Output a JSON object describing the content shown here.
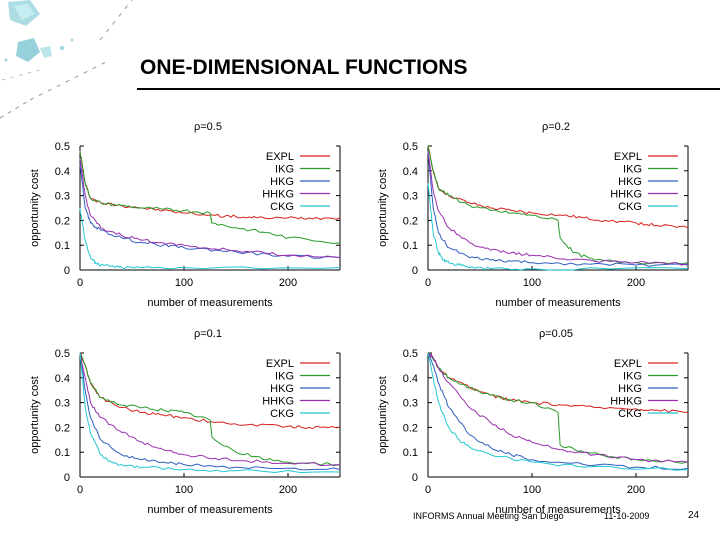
{
  "slide": {
    "title": "ONE-DIMENSIONAL FUNCTIONS",
    "footer_left": "INFORMS Annual Meeting San Diego",
    "footer_date": "11-10-2009",
    "page_number": "24"
  },
  "colors": {
    "EXPL": "#d62020",
    "IKG": "#2a9a2a",
    "HKG": "#2f5fc0",
    "HHKG": "#9a2fb0",
    "CKG": "#22c8d0"
  },
  "chart_data": [
    {
      "type": "line",
      "title": "ρ=0.5",
      "xlabel": "number of measurements",
      "ylabel": "opportunity cost",
      "xlim": [
        0,
        250
      ],
      "ylim": [
        0,
        0.5
      ],
      "xticks": [
        "0",
        "100",
        "200"
      ],
      "yticks": [
        "0",
        "0.1",
        "0.2",
        "0.3",
        "0.4",
        "0.5"
      ],
      "legend_position": "top-right",
      "series": [
        {
          "name": "EXPL",
          "x": [
            0,
            5,
            10,
            20,
            40,
            60,
            80,
            100,
            130,
            150,
            170,
            200,
            220,
            250
          ],
          "y": [
            0.48,
            0.35,
            0.29,
            0.27,
            0.26,
            0.25,
            0.24,
            0.23,
            0.22,
            0.215,
            0.21,
            0.21,
            0.21,
            0.21
          ]
        },
        {
          "name": "IKG",
          "x": [
            0,
            5,
            10,
            20,
            40,
            60,
            80,
            100,
            125,
            127,
            150,
            180,
            200,
            250
          ],
          "y": [
            0.48,
            0.35,
            0.29,
            0.27,
            0.26,
            0.25,
            0.245,
            0.24,
            0.23,
            0.19,
            0.17,
            0.15,
            0.13,
            0.11
          ]
        },
        {
          "name": "HKG",
          "x": [
            0,
            5,
            10,
            20,
            40,
            60,
            80,
            100,
            130,
            160,
            200,
            250
          ],
          "y": [
            0.43,
            0.25,
            0.19,
            0.16,
            0.13,
            0.11,
            0.1,
            0.09,
            0.08,
            0.07,
            0.055,
            0.05
          ]
        },
        {
          "name": "HHKG",
          "x": [
            0,
            5,
            10,
            20,
            40,
            60,
            80,
            100,
            130,
            160,
            200,
            250
          ],
          "y": [
            0.45,
            0.3,
            0.22,
            0.17,
            0.14,
            0.12,
            0.11,
            0.1,
            0.085,
            0.075,
            0.06,
            0.05
          ]
        },
        {
          "name": "CKG",
          "x": [
            0,
            5,
            10,
            15,
            20,
            30,
            40,
            60,
            100,
            250
          ],
          "y": [
            0.25,
            0.12,
            0.05,
            0.03,
            0.02,
            0.015,
            0.01,
            0.01,
            0.01,
            0.01
          ]
        }
      ]
    },
    {
      "type": "line",
      "title": "ρ=0.2",
      "xlabel": "number of measurements",
      "ylabel": "opportunity cost",
      "xlim": [
        0,
        250
      ],
      "ylim": [
        0,
        0.5
      ],
      "xticks": [
        "0",
        "100",
        "200"
      ],
      "yticks": [
        "0",
        "0.1",
        "0.2",
        "0.3",
        "0.4",
        "0.5"
      ],
      "legend_position": "top-right",
      "series": [
        {
          "name": "EXPL",
          "x": [
            0,
            5,
            10,
            20,
            40,
            60,
            80,
            100,
            130,
            150,
            170,
            200,
            220,
            250
          ],
          "y": [
            0.5,
            0.4,
            0.33,
            0.3,
            0.27,
            0.25,
            0.24,
            0.23,
            0.22,
            0.21,
            0.2,
            0.19,
            0.18,
            0.17
          ]
        },
        {
          "name": "IKG",
          "x": [
            0,
            5,
            10,
            20,
            40,
            60,
            80,
            100,
            125,
            127,
            140,
            160,
            200,
            250
          ],
          "y": [
            0.5,
            0.4,
            0.33,
            0.3,
            0.26,
            0.24,
            0.23,
            0.22,
            0.2,
            0.13,
            0.07,
            0.04,
            0.03,
            0.03
          ]
        },
        {
          "name": "HKG",
          "x": [
            0,
            5,
            10,
            20,
            40,
            60,
            80,
            100,
            150,
            200,
            250
          ],
          "y": [
            0.48,
            0.25,
            0.15,
            0.09,
            0.05,
            0.04,
            0.035,
            0.03,
            0.025,
            0.02,
            0.02
          ]
        },
        {
          "name": "HHKG",
          "x": [
            0,
            5,
            10,
            20,
            40,
            60,
            80,
            100,
            130,
            160,
            200,
            250
          ],
          "y": [
            0.48,
            0.32,
            0.24,
            0.17,
            0.11,
            0.08,
            0.07,
            0.06,
            0.045,
            0.035,
            0.03,
            0.025
          ]
        },
        {
          "name": "CKG",
          "x": [
            0,
            5,
            10,
            15,
            20,
            30,
            40,
            60,
            100,
            250
          ],
          "y": [
            0.35,
            0.15,
            0.07,
            0.04,
            0.03,
            0.02,
            0.01,
            0.005,
            0.005,
            0.005
          ]
        }
      ]
    },
    {
      "type": "line",
      "title": "ρ=0.1",
      "xlabel": "number of measurements",
      "ylabel": "opportunity cost",
      "xlim": [
        0,
        250
      ],
      "ylim": [
        0,
        0.5
      ],
      "xticks": [
        "0",
        "100",
        "200"
      ],
      "yticks": [
        "0",
        "0.1",
        "0.2",
        "0.3",
        "0.4",
        "0.5"
      ],
      "legend_position": "top-right",
      "series": [
        {
          "name": "EXPL",
          "x": [
            0,
            5,
            10,
            20,
            40,
            60,
            80,
            100,
            130,
            160,
            200,
            220,
            250
          ],
          "y": [
            0.5,
            0.45,
            0.38,
            0.32,
            0.28,
            0.26,
            0.25,
            0.24,
            0.22,
            0.21,
            0.205,
            0.2,
            0.2
          ]
        },
        {
          "name": "IKG",
          "x": [
            0,
            5,
            10,
            20,
            40,
            60,
            80,
            100,
            125,
            127,
            150,
            180,
            200,
            250
          ],
          "y": [
            0.5,
            0.45,
            0.38,
            0.32,
            0.29,
            0.28,
            0.27,
            0.26,
            0.23,
            0.16,
            0.1,
            0.07,
            0.06,
            0.05
          ]
        },
        {
          "name": "HKG",
          "x": [
            0,
            5,
            10,
            20,
            40,
            60,
            80,
            100,
            150,
            200,
            250
          ],
          "y": [
            0.5,
            0.35,
            0.24,
            0.15,
            0.09,
            0.07,
            0.06,
            0.05,
            0.04,
            0.035,
            0.03
          ]
        },
        {
          "name": "HHKG",
          "x": [
            0,
            5,
            10,
            20,
            40,
            60,
            80,
            100,
            130,
            160,
            200,
            250
          ],
          "y": [
            0.5,
            0.4,
            0.3,
            0.24,
            0.18,
            0.14,
            0.11,
            0.09,
            0.075,
            0.065,
            0.055,
            0.05
          ]
        },
        {
          "name": "CKG",
          "x": [
            0,
            5,
            10,
            20,
            30,
            40,
            60,
            100,
            150,
            250
          ],
          "y": [
            0.5,
            0.28,
            0.18,
            0.09,
            0.06,
            0.05,
            0.04,
            0.03,
            0.025,
            0.02
          ]
        }
      ]
    },
    {
      "type": "line",
      "title": "ρ=0.05",
      "xlabel": "number of measurements",
      "ylabel": "opportunity cost",
      "xlim": [
        0,
        250
      ],
      "ylim": [
        0,
        0.5
      ],
      "xticks": [
        "0",
        "100",
        "200"
      ],
      "yticks": [
        "0",
        "0.1",
        "0.2",
        "0.3",
        "0.4",
        "0.5"
      ],
      "legend_position": "top-right",
      "series": [
        {
          "name": "EXPL",
          "x": [
            0,
            5,
            10,
            20,
            40,
            60,
            80,
            100,
            130,
            160,
            200,
            220,
            250
          ],
          "y": [
            0.5,
            0.48,
            0.44,
            0.4,
            0.36,
            0.33,
            0.31,
            0.3,
            0.29,
            0.28,
            0.275,
            0.27,
            0.26
          ]
        },
        {
          "name": "IKG",
          "x": [
            0,
            5,
            10,
            20,
            40,
            60,
            80,
            100,
            125,
            127,
            150,
            180,
            200,
            250
          ],
          "y": [
            0.5,
            0.48,
            0.44,
            0.4,
            0.36,
            0.33,
            0.31,
            0.3,
            0.26,
            0.13,
            0.1,
            0.08,
            0.07,
            0.06
          ]
        },
        {
          "name": "HKG",
          "x": [
            0,
            5,
            10,
            20,
            40,
            60,
            80,
            100,
            150,
            200,
            250
          ],
          "y": [
            0.5,
            0.45,
            0.38,
            0.28,
            0.17,
            0.12,
            0.09,
            0.07,
            0.05,
            0.04,
            0.035
          ]
        },
        {
          "name": "HHKG",
          "x": [
            0,
            5,
            10,
            20,
            40,
            60,
            80,
            100,
            130,
            160,
            200,
            250
          ],
          "y": [
            0.5,
            0.48,
            0.44,
            0.38,
            0.28,
            0.22,
            0.17,
            0.14,
            0.11,
            0.09,
            0.07,
            0.06
          ]
        },
        {
          "name": "CKG",
          "x": [
            0,
            5,
            10,
            20,
            30,
            40,
            60,
            100,
            150,
            250
          ],
          "y": [
            0.5,
            0.4,
            0.3,
            0.2,
            0.15,
            0.12,
            0.09,
            0.06,
            0.04,
            0.03
          ]
        }
      ]
    }
  ]
}
